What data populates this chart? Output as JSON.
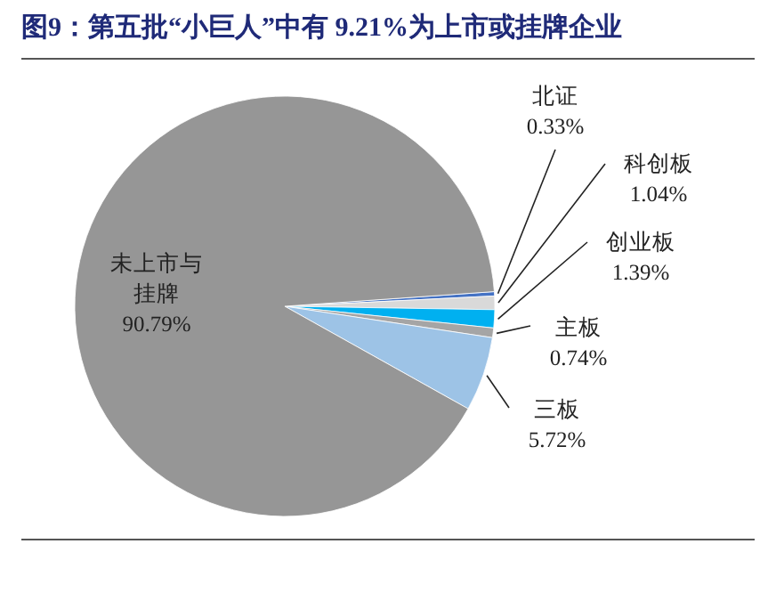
{
  "chart_data": {
    "type": "pie",
    "title": "图9：第五批“小巨人”中有 9.21%为上市或挂牌企业",
    "categories": [
      "北证",
      "科创板",
      "创业板",
      "主板",
      "三板",
      "未上市与挂牌"
    ],
    "values": [
      0.33,
      1.04,
      1.39,
      0.74,
      5.72,
      90.79
    ],
    "value_labels": [
      "0.33%",
      "1.04%",
      "1.39%",
      "0.74%",
      "5.72%",
      "90.79%"
    ],
    "colors": [
      "#4472c4",
      "#d9d9d9",
      "#00b0f0",
      "#a5a5a5",
      "#9dc3e6",
      "#969696"
    ]
  }
}
